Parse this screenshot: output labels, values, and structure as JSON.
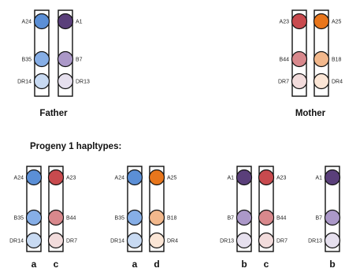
{
  "colors": {
    "A24": "#5b8fd6",
    "A1": "#5a3f7a",
    "B35": "#86aee6",
    "B7": "#ab98c8",
    "DR14": "#c8daf2",
    "DR13": "#e6e0ee",
    "A23": "#c84a4e",
    "A25": "#e8761c",
    "B44": "#d8888c",
    "B18": "#f2b88c",
    "DR7": "#f2dcdc",
    "DR4": "#fbe6d6"
  },
  "parents": {
    "father": {
      "caption": "Father",
      "left": [
        "A24",
        "B35",
        "DR14"
      ],
      "right": [
        "A1",
        "B7",
        "DR13"
      ]
    },
    "mother": {
      "caption": "Mother",
      "left": [
        "A23",
        "B44",
        "DR7"
      ],
      "right": [
        "A25",
        "B18",
        "DR4"
      ]
    }
  },
  "progeny": {
    "title": "Progeny 1 hapltypes:",
    "groups": [
      {
        "left": {
          "alleles": [
            "A24",
            "B35",
            "DR14"
          ],
          "letter": "a"
        },
        "right": {
          "alleles": [
            "A23",
            "B44",
            "DR7"
          ],
          "letter": "c"
        }
      },
      {
        "left": {
          "alleles": [
            "A24",
            "B35",
            "DR14"
          ],
          "letter": "a"
        },
        "right": {
          "alleles": [
            "A25",
            "B18",
            "DR4"
          ],
          "letter": "d"
        }
      },
      {
        "left": {
          "alleles": [
            "A1",
            "B7",
            "DR13"
          ],
          "letter": "b"
        },
        "right": {
          "alleles": [
            "A23",
            "B44",
            "DR7"
          ],
          "letter": "c"
        }
      },
      {
        "left": {
          "alleles": [
            "A1",
            "B7",
            "DR13"
          ],
          "letter": "b"
        },
        "right": null
      }
    ]
  }
}
